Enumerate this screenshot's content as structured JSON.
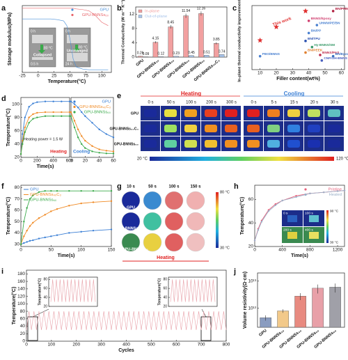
{
  "chart_data": [
    {
      "panel": "a",
      "type": "line",
      "xlabel": "Temperature(°C)",
      "ylabel": "Storage modulus(MPa)",
      "xlim": [
        -25,
        115
      ],
      "xticks": [
        -25,
        0,
        25,
        50,
        75,
        100
      ],
      "ylim": [
        0,
        10
      ],
      "legend": "upper right",
      "x": [
        -25,
        0,
        20,
        30,
        40,
        45,
        50,
        55,
        60,
        70,
        80,
        90,
        100,
        110
      ],
      "series": [
        {
          "name": "GPU",
          "color": "#4a90d9",
          "values": [
            8,
            8,
            8,
            7.9,
            7.7,
            7,
            5,
            2,
            0.8,
            0.5,
            0.4,
            0.4,
            0.4,
            0.4
          ]
        },
        {
          "name": "GPU-BNNSs₆₀",
          "color": "#e8656a",
          "values": [
            9.6,
            9.6,
            9.6,
            9.6,
            9.6,
            9.6,
            9.6,
            9.6,
            9.5,
            9.4,
            9.2,
            8.5,
            7.5,
            7
          ]
        }
      ]
    },
    {
      "panel": "b",
      "type": "bar",
      "ylabel": "Thermal Conductivity (W m⁻¹ K⁻¹)",
      "ylim": [
        0,
        14
      ],
      "yticks": [
        0,
        4,
        8,
        12
      ],
      "legend": "upper left",
      "show_values": true,
      "xtick_rotation": 40,
      "categories": [
        "GPU",
        "GPU-BNNSs₂₀",
        "GPU-BNNSs₄₀",
        "GPU-BNNSs₅₀",
        "GPU-BNNSs₆₀",
        "GPU-BNNSs₄₀C₃"
      ],
      "series": [
        {
          "name": "In-plane",
          "color": "#f2a0a0",
          "values": [
            0.26,
            4.15,
            8.45,
            11.54,
            12.16,
            3.85
          ],
          "errors": [
            0.05,
            0.3,
            0.5,
            0.6,
            0.6,
            0.3
          ]
        },
        {
          "name": "Out-of-plane",
          "color": "#a8c4ea",
          "values": [
            0.09,
            0.12,
            0.23,
            0.45,
            0.51,
            0.74
          ]
        }
      ]
    },
    {
      "panel": "c",
      "type": "scatter",
      "xlabel": "Filler content(wt%)",
      "ylabel": "In-plane thermal conductivity improvement(%)",
      "xlim": [
        5,
        62
      ],
      "xticks": [
        10,
        20,
        30,
        40,
        50,
        60
      ],
      "ylim": [
        0,
        105
      ],
      "series": [
        {
          "name": "This work",
          "marker": "star",
          "color": "#e03030",
          "x": [
            10,
            20,
            38
          ],
          "values": [
            48,
            70,
            96
          ]
        },
        {
          "colors": [
            "#4a80d0",
            "#d04070",
            "#4a80d0",
            "#b02040",
            "#4a80d0",
            "#2a50b0",
            "#3a9a6a",
            "#e08030",
            "#c03050",
            "#4a60c0",
            "#3a70c0"
          ],
          "x": [
            10,
            40,
            45,
            55,
            40,
            38,
            42,
            38,
            47,
            48,
            55
          ],
          "values": [
            22,
            80,
            73,
            96,
            60,
            47,
            37,
            28,
            24,
            15,
            22
          ],
          "labels": [
            "PBO/BNNS",
            "BNNS/Epoxy",
            "UHMWPE/BN",
            "BN/PMMA",
            "BN/PP",
            "BN/TPU",
            "Hy-BNNS/SM",
            "BN/PEEK",
            "BNNS/PAS",
            "CNF/OH-BNNS",
            "BN/Epoxy"
          ]
        }
      ]
    },
    {
      "panel": "d",
      "type": "line",
      "xlabel": "Time(s)",
      "ylabel": "Temperature(°C)",
      "xlim": [
        0,
        600
      ],
      "xticks": [
        0,
        200,
        400,
        600
      ],
      "ylim": [
        20,
        110
      ],
      "yticks": [
        20,
        40,
        60,
        80,
        100
      ],
      "markers": true,
      "x": [
        0,
        20,
        50,
        100,
        150,
        200,
        300,
        400,
        500,
        600
      ],
      "series": [
        {
          "color": "#3a7fd5",
          "values": [
            25,
            55,
            80,
            96,
            101,
            103,
            104,
            104,
            104,
            104
          ]
        },
        {
          "color": "#f08a24",
          "values": [
            25,
            45,
            65,
            80,
            85,
            87,
            88,
            88,
            88,
            88
          ]
        },
        {
          "color": "#3aaa4a",
          "values": [
            25,
            40,
            58,
            72,
            78,
            80,
            82,
            82,
            82,
            82
          ]
        }
      ]
    },
    {
      "type": "line",
      "xlim": [
        0,
        60
      ],
      "xticks": [
        0,
        20,
        40,
        60
      ],
      "ylim": [
        20,
        110
      ],
      "legend": "upper right",
      "markers": true,
      "x": [
        0,
        5,
        10,
        15,
        20,
        30,
        40,
        50,
        60
      ],
      "series": [
        {
          "name": "GPU",
          "color": "#3a7fd5",
          "values": [
            104,
            100,
            95,
            88,
            82,
            72,
            62,
            55,
            50
          ]
        },
        {
          "name": "GPU-BNNSs₄₀C₃",
          "color": "#f08a24",
          "values": [
            88,
            75,
            62,
            52,
            45,
            37,
            32,
            30,
            29
          ]
        },
        {
          "name": "GPU-BNNSs₆₀",
          "color": "#3aaa4a",
          "values": [
            82,
            65,
            50,
            40,
            34,
            29,
            27,
            26,
            26
          ]
        }
      ]
    },
    {
      "panel": "f",
      "type": "line",
      "xlabel": "Time(s)",
      "ylabel": "Temperature(°C)",
      "xlim": [
        0,
        150
      ],
      "xticks": [
        0,
        50,
        100,
        150
      ],
      "ylim": [
        28,
        82
      ],
      "yticks": [
        30,
        40,
        50,
        60,
        70,
        80
      ],
      "legend": "upper left",
      "markers": true,
      "x": [
        0,
        5,
        10,
        15,
        20,
        30,
        40,
        50,
        60,
        80,
        100,
        120,
        150
      ],
      "series": [
        {
          "name": "GPU",
          "color": "#3a7fd5",
          "values": [
            30,
            31,
            32,
            33,
            33.5,
            35,
            36,
            37,
            38,
            40,
            41,
            42,
            43
          ]
        },
        {
          "name": "GPU-BNNSs₄₀C₃",
          "color": "#f08a24",
          "values": [
            30,
            37,
            42,
            46,
            49,
            53,
            56,
            59,
            61,
            64,
            66,
            67,
            68
          ]
        },
        {
          "name": "GPU-BNNSs₆₀",
          "color": "#3aaa4a",
          "values": [
            30,
            50,
            62,
            70,
            73,
            76,
            77,
            77,
            77,
            77,
            77,
            77,
            77
          ]
        }
      ]
    },
    {
      "panel": "h",
      "type": "line",
      "xlabel": "Time(s)",
      "ylabel": "Temperature(°C)",
      "xlim": [
        0,
        1300
      ],
      "xticks": [
        0,
        400,
        800,
        1200
      ],
      "ylim": [
        20,
        72
      ],
      "yticks": [
        20,
        40,
        60
      ],
      "legend": "upper right",
      "markers": true,
      "x": [
        0,
        50,
        100,
        200,
        300,
        400,
        600,
        800,
        1000,
        1200,
        1300
      ],
      "series": [
        {
          "name": "Pristine",
          "color": "#e8607a",
          "values": [
            25,
            35,
            42,
            51,
            56,
            59,
            63,
            65,
            66,
            67,
            67.5
          ]
        },
        {
          "name": "Healed",
          "color": "#9bb0c8",
          "values": [
            25,
            34,
            41,
            50,
            55,
            59,
            62,
            65,
            66,
            67,
            67.5
          ]
        }
      ]
    },
    {
      "panel": "i",
      "type": "line",
      "xlabel": "Cycles",
      "ylabel": "Temperature(°C)",
      "xlim": [
        0,
        800
      ],
      "xticks": [
        0,
        100,
        200,
        300,
        400,
        500,
        600,
        700,
        800
      ],
      "ylim": [
        0,
        190
      ],
      "yticks": [
        0,
        20,
        40,
        60,
        80,
        100,
        120,
        140,
        160,
        180
      ],
      "x": [
        0,
        10,
        20,
        30,
        40,
        50,
        60,
        70,
        80,
        90,
        100,
        110,
        120,
        130,
        140,
        150,
        160,
        170,
        180,
        190,
        200,
        210,
        220,
        230,
        240,
        250,
        260,
        270,
        280,
        290,
        300,
        310,
        320,
        330,
        340,
        350,
        360,
        370,
        380,
        390,
        400,
        410,
        420,
        430,
        440,
        450,
        460,
        470,
        480,
        490,
        500,
        510,
        520,
        530,
        540,
        550,
        560,
        570,
        580,
        590,
        600,
        610,
        620,
        630,
        640,
        650,
        660,
        670,
        680,
        690,
        700,
        710,
        720,
        730,
        740,
        750,
        760,
        770,
        780,
        790,
        800
      ],
      "series": [
        {
          "color": "#e8a0a8",
          "values": [
            30,
            80,
            30,
            80,
            30,
            80,
            30,
            80,
            30,
            80,
            30,
            80,
            30,
            80,
            30,
            80,
            30,
            80,
            30,
            80,
            30,
            80,
            30,
            80,
            30,
            80,
            30,
            80,
            30,
            80,
            30,
            80,
            30,
            80,
            30,
            80,
            30,
            80,
            30,
            80,
            30,
            80,
            30,
            80,
            30,
            80,
            30,
            80,
            30,
            80,
            30,
            80,
            30,
            80,
            30,
            80,
            30,
            80,
            30,
            80,
            30,
            80,
            30,
            80,
            30,
            80,
            30,
            80,
            30,
            80,
            30,
            80,
            30,
            80,
            30,
            80,
            30,
            80,
            30,
            80,
            30
          ]
        }
      ]
    },
    {
      "type": "line",
      "ylabel": "Temperature(°C)",
      "ylim": [
        20,
        85
      ],
      "yticks": [
        20,
        40,
        60,
        80
      ],
      "series": [
        {
          "color": "#e8a0a8",
          "values": [
            30,
            80,
            30,
            80,
            30,
            80,
            30,
            80,
            30,
            80,
            30,
            80,
            30,
            80,
            30,
            80,
            30,
            80,
            30,
            80,
            30,
            80,
            30,
            80,
            30
          ]
        }
      ]
    },
    {
      "type": "line",
      "ylabel": "Temperature(°C)",
      "ylim": [
        20,
        85
      ],
      "yticks": [
        20,
        40,
        60,
        80
      ],
      "series": [
        {
          "color": "#e8a0a8",
          "values": [
            30,
            80,
            30,
            80,
            30,
            80,
            30,
            80,
            30,
            80,
            30,
            80,
            30,
            80,
            30,
            80,
            30,
            80,
            30,
            80,
            30,
            80,
            30,
            80,
            30
          ]
        }
      ]
    },
    {
      "panel": "j",
      "type": "bar",
      "ylabel": "Volume resistivity(Ω·cm)",
      "log_y": true,
      "ylim": [
        200000000000.0,
        20000000000000.0
      ],
      "yticks": [
        {
          "value": 1000000000000.0,
          "label": "10¹²"
        },
        {
          "value": 10000000000000.0,
          "label": "10¹³"
        }
      ],
      "xtick_rotation": 40,
      "categories": [
        "GPU",
        "GPU-BNNSs₂₀",
        "GPU-BNNSs₄₀",
        "GPU-BNNSs₅₀",
        "GPU-BNNSs₆₀"
      ],
      "series": [
        {
          "colors": [
            "#8a9cc0",
            "#f2c98a",
            "#e88a80",
            "#e8a0a8",
            "#a0a0a8"
          ],
          "values": [
            450000000000.0,
            800000000000.0,
            2800000000000.0,
            5500000000000.0,
            6000000000000.0
          ],
          "errors": [
            100000000000.0,
            120000000000.0,
            800000000000.0,
            2000000000000.0,
            2200000000000.0
          ]
        }
      ]
    }
  ],
  "thermal_images": {
    "panel": "e",
    "heating": "Heating",
    "cooling": "Cooling",
    "heating_times": [
      "0 s",
      "50 s",
      "100 s",
      "200 s",
      "300 s"
    ],
    "cooling_times": [
      "0 s",
      "5 s",
      "15 s",
      "20 s",
      "30 s"
    ],
    "rows": [
      "GPU",
      "GPU-BNNSs₄₀C₃",
      "GPU-BNNSs₆₀"
    ],
    "scale": [
      "20 °C",
      "120 °C"
    ]
  },
  "healing_images": {
    "panel": "g",
    "times": [
      "10 s",
      "50 s",
      "100 s",
      "150 s"
    ],
    "rows": [
      "GPU",
      "GPU-BNNSs₄₀C₃",
      "GPU-BNNSs₆₀"
    ],
    "scale": [
      "80 °C",
      "30 °C"
    ],
    "caption": "Heating"
  },
  "modulus_insets": [
    "0 h",
    "80 °C",
    "Collapsed",
    "0.5 h",
    "0 h",
    "80 °C",
    "Unchanged",
    "24 h"
  ],
  "heating_annotations": {
    "power": "Heating power = 1.5 W",
    "heating": "Heating",
    "cooling": "Cooling"
  },
  "recovery_insets": {
    "times": [
      "0 s",
      "100 s",
      "200 s",
      "400 s"
    ],
    "scale": [
      "90 °C",
      "30 °C"
    ]
  }
}
